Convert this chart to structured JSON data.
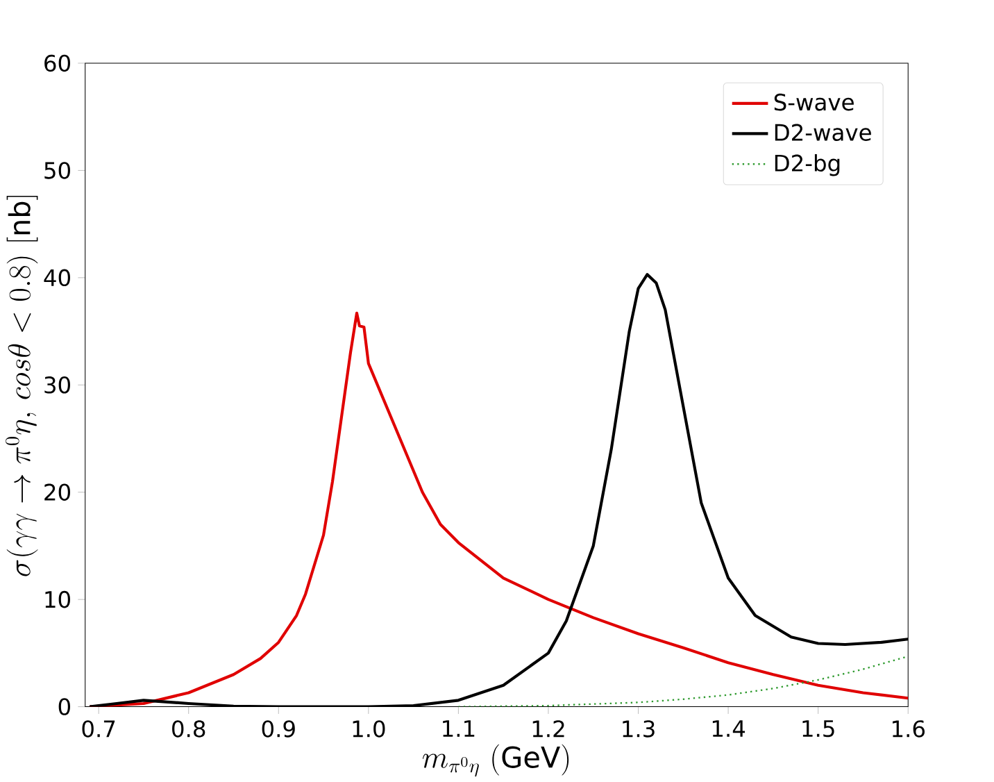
{
  "chart_data": {
    "type": "line",
    "xlabel": "m_{\\pi^0\\eta}\\ \\mathrm{(GeV)}",
    "ylabel": "\\sigma(\\gamma\\gamma\\to\\pi^0\\eta,\\, cos\\theta < 0.8)\\ \\mathrm{[nb]}",
    "xlim": [
      0.685,
      1.6
    ],
    "ylim": [
      0,
      60
    ],
    "xticks": [
      {
        "value": 0.7,
        "label": "0.7"
      },
      {
        "value": 0.8,
        "label": "0.8"
      },
      {
        "value": 0.9,
        "label": "0.9"
      },
      {
        "value": 1.0,
        "label": "1.0"
      },
      {
        "value": 1.1,
        "label": "1.1"
      },
      {
        "value": 1.2,
        "label": "1.2"
      },
      {
        "value": 1.3,
        "label": "1.3"
      },
      {
        "value": 1.4,
        "label": "1.4"
      },
      {
        "value": 1.5,
        "label": "1.5"
      },
      {
        "value": 1.6,
        "label": "1.6"
      }
    ],
    "yticks": [
      0,
      10,
      20,
      30,
      40,
      50,
      60
    ],
    "legend": "top right",
    "grid": false,
    "marker": "none",
    "series": [
      {
        "name": "S-wave",
        "color": "#e00000",
        "line_style": "solid",
        "x": [
          0.69,
          0.75,
          0.8,
          0.85,
          0.88,
          0.9,
          0.92,
          0.93,
          0.95,
          0.96,
          0.97,
          0.98,
          0.987,
          0.99,
          0.995,
          1.0,
          1.03,
          1.06,
          1.08,
          1.1,
          1.15,
          1.2,
          1.25,
          1.3,
          1.35,
          1.4,
          1.45,
          1.5,
          1.55,
          1.6
        ],
        "values": [
          0,
          0.3,
          1.3,
          3,
          4.5,
          6,
          8.5,
          10.5,
          16,
          21,
          27,
          33,
          36.7,
          35.5,
          35.4,
          32,
          26,
          20,
          17,
          15.3,
          12,
          10,
          8.3,
          6.8,
          5.5,
          4.1,
          3.0,
          2.0,
          1.3,
          0.8
        ]
      },
      {
        "name": "D2-wave",
        "color": "#000000",
        "line_style": "solid",
        "x": [
          0.69,
          0.72,
          0.75,
          0.8,
          0.85,
          0.9,
          1.0,
          1.05,
          1.1,
          1.15,
          1.2,
          1.22,
          1.25,
          1.27,
          1.29,
          1.3,
          1.31,
          1.32,
          1.33,
          1.35,
          1.37,
          1.4,
          1.43,
          1.47,
          1.5,
          1.53,
          1.57,
          1.6
        ],
        "values": [
          0,
          0.3,
          0.6,
          0.3,
          0.05,
          0,
          0,
          0.1,
          0.6,
          2,
          5,
          8,
          15,
          24,
          35,
          39,
          40.3,
          39.5,
          37,
          28,
          19,
          12,
          8.5,
          6.5,
          5.9,
          5.8,
          6,
          6.3
        ]
      },
      {
        "name": "D2-bg",
        "color": "#2e9a2e",
        "line_style": "dotted",
        "x": [
          1.1,
          1.2,
          1.3,
          1.35,
          1.4,
          1.45,
          1.5,
          1.55,
          1.6
        ],
        "values": [
          0,
          0.1,
          0.4,
          0.7,
          1.1,
          1.7,
          2.5,
          3.5,
          4.7
        ]
      }
    ]
  }
}
